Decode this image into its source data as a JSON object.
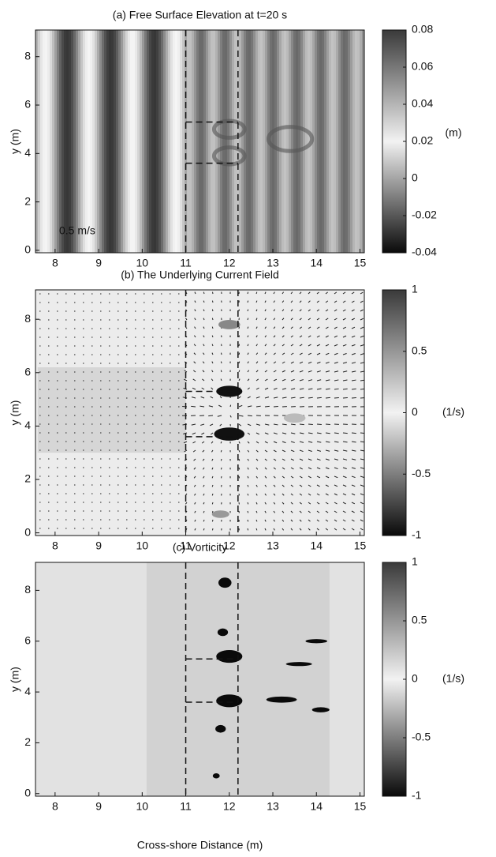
{
  "chart_data": [
    {
      "type": "heatmap",
      "title": "(a) Free Surface Elevation at t=20 s",
      "ylabel": "y (m)",
      "xlim": [
        7.55,
        15.1
      ],
      "xticks": [
        8,
        9,
        10,
        11,
        12,
        13,
        14,
        15
      ],
      "ylim": [
        -0.1,
        9.1
      ],
      "yticks": [
        0,
        2,
        4,
        6,
        8
      ],
      "colorbar": {
        "lim": [
          -0.04,
          0.08
        ],
        "ticks": [
          -0.04,
          -0.02,
          0,
          0.02,
          0.04,
          0.06,
          0.08
        ],
        "label": "(m)",
        "colors": [
          "#0a0a0a",
          "#f2f2f2",
          "#3a3a3a"
        ]
      }
    },
    {
      "type": "heatmap",
      "title": "(b) The Underlying Current Field",
      "ylabel": "y (m)",
      "xlim": [
        7.55,
        15.1
      ],
      "xticks": [
        8,
        9,
        10,
        11,
        12,
        13,
        14,
        15
      ],
      "ylim": [
        -0.1,
        9.1
      ],
      "yticks": [
        0,
        2,
        4,
        6,
        8
      ],
      "annotation": "0.5 m/s",
      "colorbar": {
        "lim": [
          -1,
          1
        ],
        "ticks": [
          -1,
          -0.5,
          0,
          0.5,
          1
        ],
        "label": "(1/s)",
        "colors": [
          "#0a0a0a",
          "#f2f2f2",
          "#3a3a3a"
        ]
      }
    },
    {
      "type": "heatmap",
      "title": "(c) Vorticity",
      "ylabel": "y (m)",
      "xlabel": "Cross-shore Distance (m)",
      "xlim": [
        7.55,
        15.1
      ],
      "xticks": [
        8,
        9,
        10,
        11,
        12,
        13,
        14,
        15
      ],
      "ylim": [
        -0.1,
        9.1
      ],
      "yticks": [
        0,
        2,
        4,
        6,
        8
      ],
      "colorbar": {
        "lim": [
          -1,
          1
        ],
        "ticks": [
          -1,
          -0.5,
          0,
          0.5,
          1
        ],
        "label": "(1/s)",
        "colors": [
          "#0a0a0a",
          "#f2f2f2",
          "#3a3a3a"
        ]
      }
    }
  ]
}
